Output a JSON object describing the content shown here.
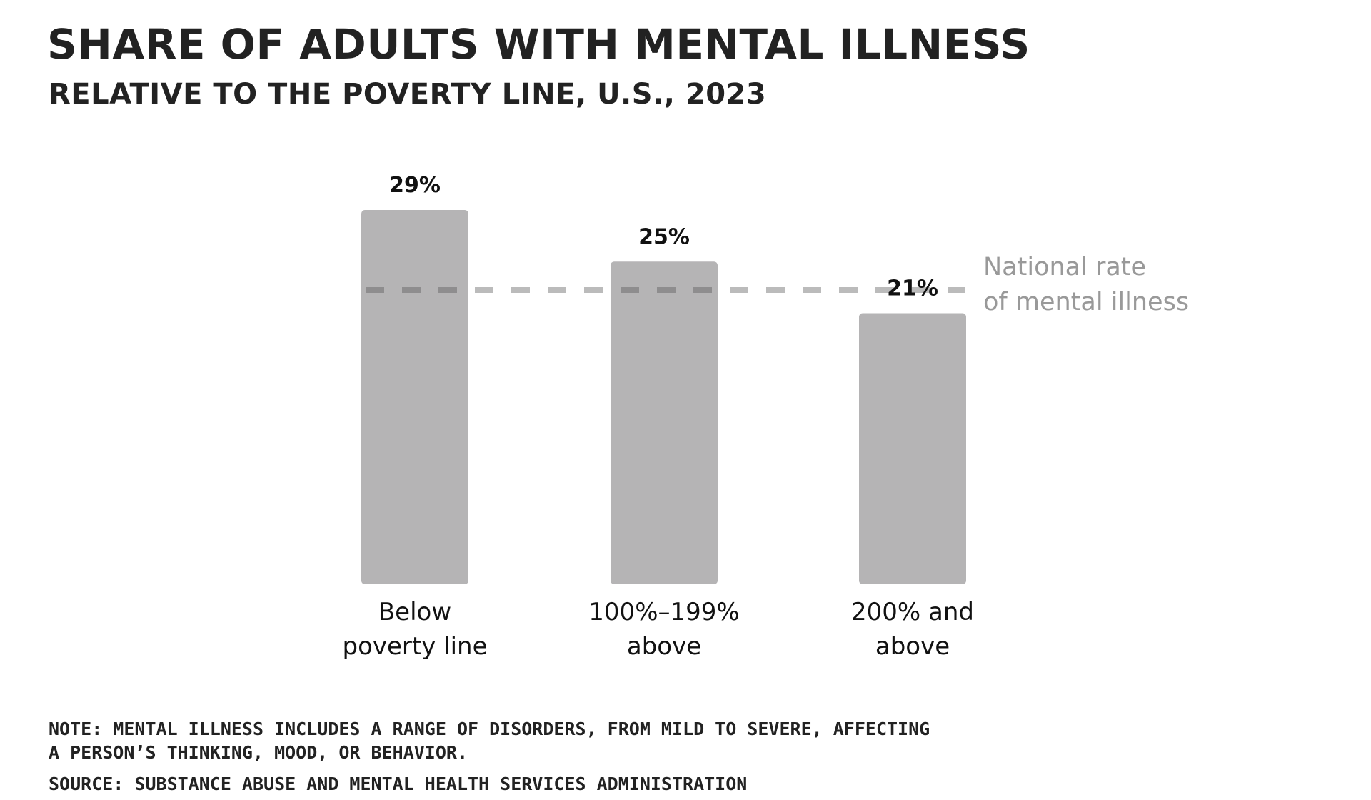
{
  "header": {
    "title": "SHARE OF ADULTS WITH MENTAL ILLNESS",
    "subtitle": "RELATIVE TO THE POVERTY LINE, U.S., 2023"
  },
  "footer": {
    "note_lines": [
      "NOTE: MENTAL ILLNESS INCLUDES A RANGE OF DISORDERS, FROM MILD TO SEVERE, AFFECTING",
      "A PERSON’S THINKING, MOOD, OR BEHAVIOR."
    ],
    "source": "SOURCE: SUBSTANCE ABUSE AND MENTAL HEALTH SERVICES ADMINISTRATION"
  },
  "chart_data": {
    "type": "bar",
    "title": "SHARE OF ADULTS WITH MENTAL ILLNESS",
    "subtitle": "RELATIVE TO THE POVERTY LINE, U.S., 2023",
    "categories": [
      [
        "Below",
        "poverty line"
      ],
      [
        "100%–199%",
        "above"
      ],
      [
        "200% and",
        "above"
      ]
    ],
    "values": [
      29,
      25,
      21
    ],
    "value_labels": [
      "29%",
      "25%",
      "21%"
    ],
    "unit": "%",
    "ylim": [
      0,
      29
    ],
    "grid": false,
    "reference_line": {
      "value": 22.8,
      "label_lines": [
        "National rate",
        "of mental illness"
      ],
      "style": "dashed"
    },
    "colors": {
      "bar": "#b5b4b5",
      "bar_overlap_line": "#8e8d8e",
      "reference_line": "#bbbbbb",
      "reference_label": "#999999",
      "value_label": "#111111",
      "category_label": "#111111"
    }
  }
}
